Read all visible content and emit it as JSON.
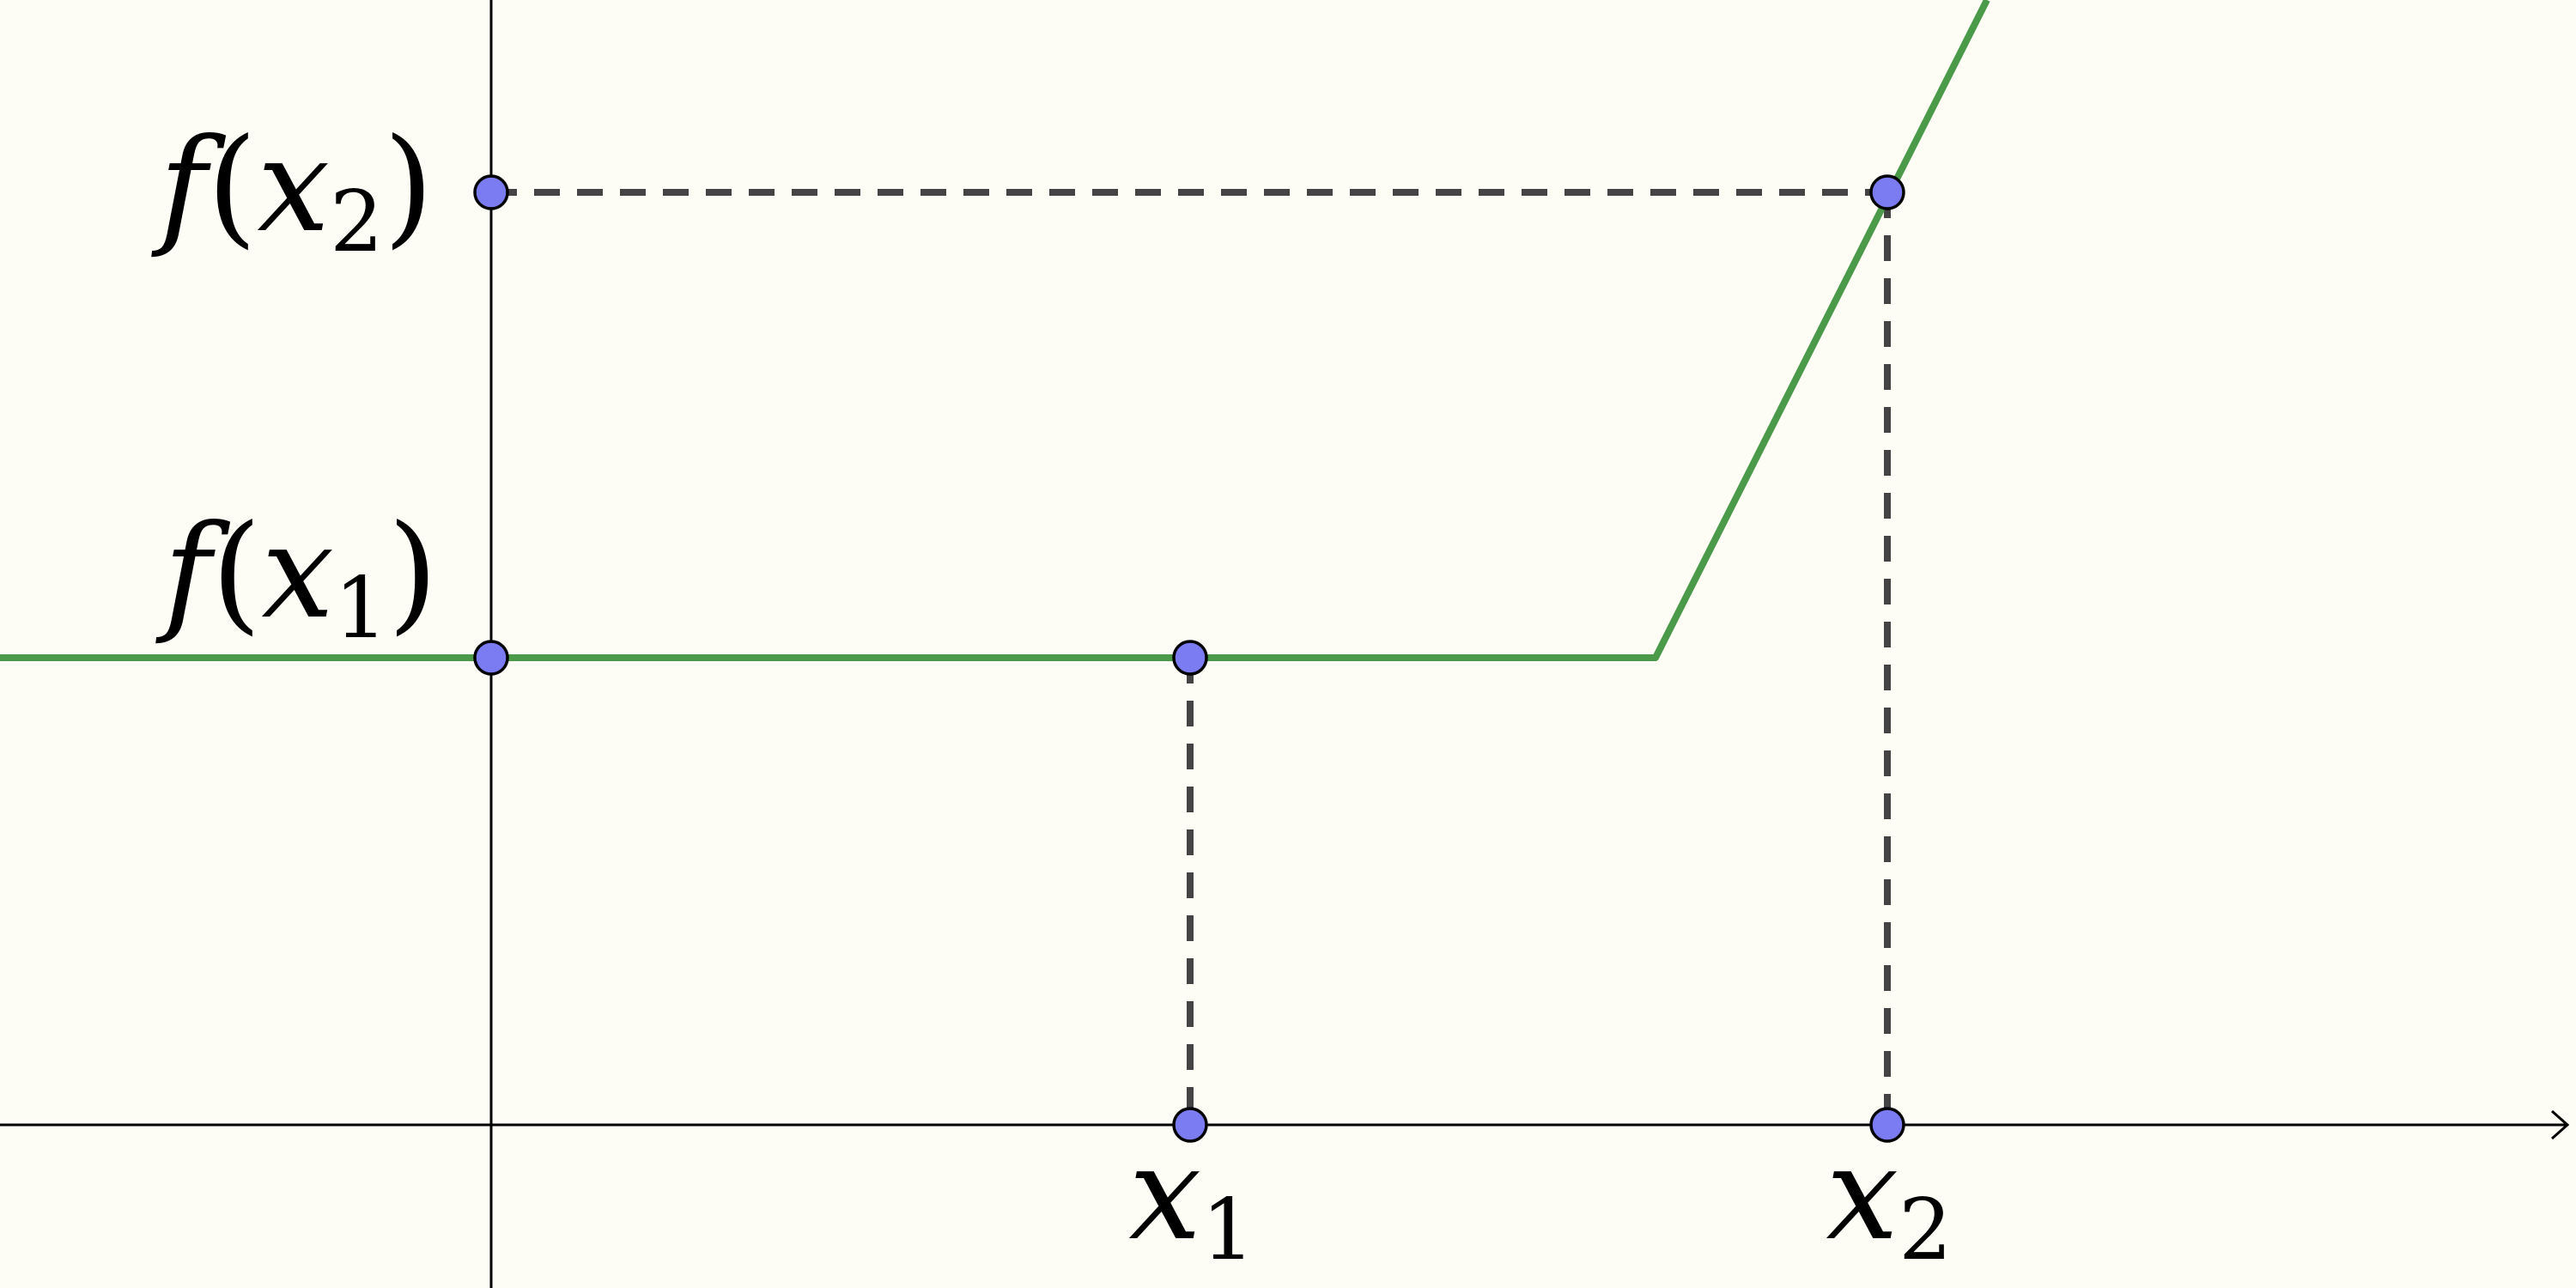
{
  "labels": {
    "y_label_x2": {
      "func": "f",
      "open": "(",
      "var": "x",
      "sub": "2",
      "close": ")"
    },
    "y_label_x1": {
      "func": "f",
      "open": "(",
      "var": "x",
      "sub": "1",
      "close": ")"
    },
    "x_label_x1": {
      "var": "x",
      "sub": "1"
    },
    "x_label_x2": {
      "var": "x",
      "sub": "2"
    }
  },
  "colors": {
    "background": "#fdfdf6",
    "graph": "#4a9a4a",
    "guide": "#444444",
    "point_fill": "#7b7bf2",
    "axis": "#000000"
  }
}
